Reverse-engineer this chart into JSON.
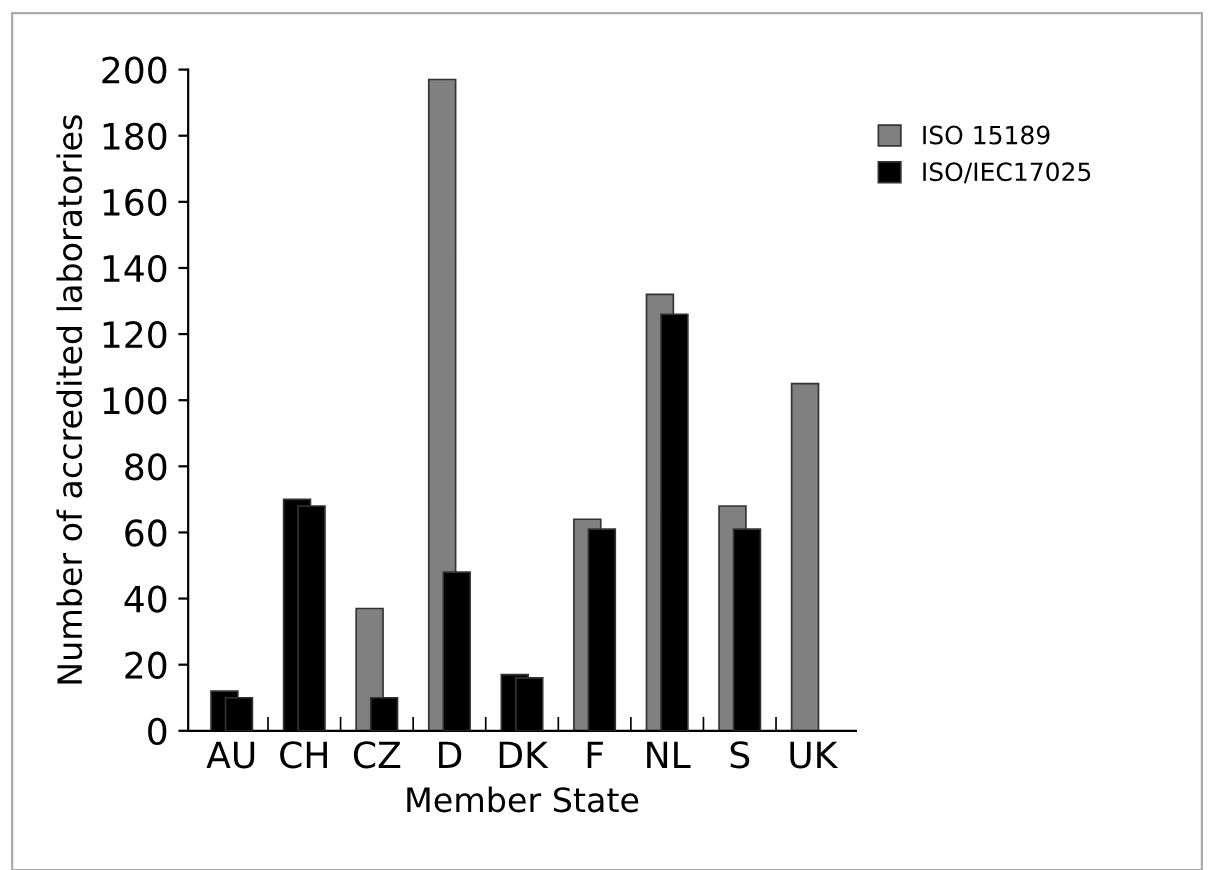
{
  "chart_data": {
    "type": "bar",
    "xlabel": "Member State",
    "ylabel": "Number of accredited laboratories",
    "categories": [
      "AU",
      "CH",
      "CZ",
      "D",
      "DK",
      "F",
      "NL",
      "S",
      "UK"
    ],
    "series": [
      {
        "name": "ISO 15189",
        "color": "#808080",
        "colors": [
          "#000000",
          "#000000",
          "#808080",
          "#808080",
          "#000000",
          "#808080",
          "#808080",
          "#808080",
          "#808080"
        ],
        "values": [
          12,
          70,
          37,
          197,
          17,
          64,
          132,
          68,
          105
        ]
      },
      {
        "name": "ISO/IEC17025",
        "color": "#000000",
        "values": [
          10,
          68,
          10,
          48,
          16,
          61,
          126,
          61,
          null
        ]
      }
    ],
    "ylim": [
      0,
      200
    ],
    "yticks": [
      0,
      20,
      40,
      60,
      80,
      100,
      120,
      140,
      160,
      180,
      200
    ],
    "grid": false,
    "legend": "top right"
  }
}
